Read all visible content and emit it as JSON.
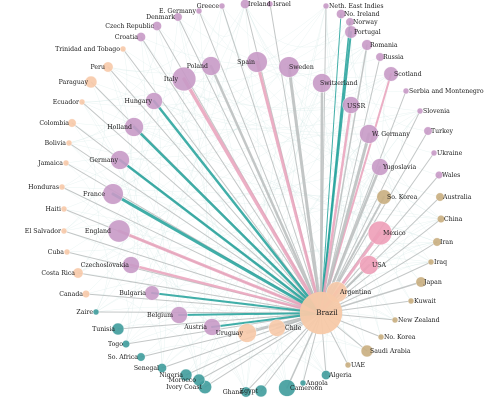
{
  "diagram": {
    "colors": {
      "europe": "#c89ac6",
      "americas": "#f7c9a8",
      "africa": "#3f9c9c",
      "asia": "#c9ae7f",
      "mexico": "#ee9fb8",
      "edge_teal": "#21a19a",
      "edge_pink": "#e9a2bb",
      "edge_gray": "#b9bdbd"
    },
    "hub": {
      "name": "Brazil",
      "region": "americas",
      "weight": 10
    },
    "countries": [
      {
        "name": "Ireland",
        "region": "europe",
        "weight": 1.2,
        "edge": "gray",
        "strength": 1
      },
      {
        "name": "Israel",
        "region": "europe",
        "weight": 0.5,
        "edge": "gray",
        "strength": 1
      },
      {
        "name": "Neth. East Indies",
        "region": "europe",
        "weight": 0.5,
        "edge": "gray",
        "strength": 1
      },
      {
        "name": "No. Ireland",
        "region": "europe",
        "weight": 1.2,
        "edge": "teal",
        "strength": 1
      },
      {
        "name": "Norway",
        "region": "europe",
        "weight": 1,
        "edge": "teal",
        "strength": 1.5
      },
      {
        "name": "Portugal",
        "region": "europe",
        "weight": 2.2,
        "edge": "teal",
        "strength": 2
      },
      {
        "name": "Romania",
        "region": "europe",
        "weight": 1.6,
        "edge": "gray",
        "strength": 1.5
      },
      {
        "name": "Russia",
        "region": "europe",
        "weight": 1,
        "edge": "gray",
        "strength": 1
      },
      {
        "name": "Scotland",
        "region": "europe",
        "weight": 3,
        "edge": "pink",
        "strength": 2
      },
      {
        "name": "Serbia and Montenegro",
        "region": "europe",
        "weight": 0.5,
        "edge": "gray",
        "strength": 1
      },
      {
        "name": "Slovenia",
        "region": "europe",
        "weight": 0.5,
        "edge": "gray",
        "strength": 1
      },
      {
        "name": "Turkey",
        "region": "europe",
        "weight": 1,
        "edge": "gray",
        "strength": 1
      },
      {
        "name": "W. Germany",
        "region": "europe",
        "weight": 5,
        "edge": "gray",
        "strength": 3
      },
      {
        "name": "Ukraine",
        "region": "europe",
        "weight": 0.5,
        "edge": "gray",
        "strength": 1
      },
      {
        "name": "Yugoslavia",
        "region": "europe",
        "weight": 4,
        "edge": "gray",
        "strength": 2.5
      },
      {
        "name": "Wales",
        "region": "europe",
        "weight": 0.8,
        "edge": "gray",
        "strength": 1
      },
      {
        "name": "So. Korea",
        "region": "asia",
        "weight": 3,
        "edge": "gray",
        "strength": 2
      },
      {
        "name": "Australia",
        "region": "asia",
        "weight": 1,
        "edge": "gray",
        "strength": 1
      },
      {
        "name": "China",
        "region": "asia",
        "weight": 0.8,
        "edge": "gray",
        "strength": 1
      },
      {
        "name": "Mexico",
        "region": "mexico",
        "weight": 8,
        "edge": "pink",
        "strength": 3
      },
      {
        "name": "Iran",
        "region": "asia",
        "weight": 1,
        "edge": "gray",
        "strength": 1
      },
      {
        "name": "USA",
        "region": "mexico",
        "weight": 5,
        "edge": "gray",
        "strength": 2
      },
      {
        "name": "Iraq",
        "region": "asia",
        "weight": 0.5,
        "edge": "gray",
        "strength": 1
      },
      {
        "name": "Japan",
        "region": "asia",
        "weight": 1.5,
        "edge": "gray",
        "strength": 1.5
      },
      {
        "name": "Argentina",
        "region": "americas",
        "weight": 6,
        "edge": "pink",
        "strength": 3
      },
      {
        "name": "Kuwait",
        "region": "asia",
        "weight": 0.5,
        "edge": "gray",
        "strength": 1
      },
      {
        "name": "New Zealand",
        "region": "asia",
        "weight": 0.5,
        "edge": "gray",
        "strength": 1
      },
      {
        "name": "No. Korea",
        "region": "asia",
        "weight": 0.5,
        "edge": "gray",
        "strength": 1
      },
      {
        "name": "Saudi Arabia",
        "region": "asia",
        "weight": 2,
        "edge": "gray",
        "strength": 1
      },
      {
        "name": "UAE",
        "region": "asia",
        "weight": 0.5,
        "edge": "gray",
        "strength": 1
      },
      {
        "name": "Algeria",
        "region": "africa",
        "weight": 1.2,
        "edge": "gray",
        "strength": 1
      },
      {
        "name": "Angola",
        "region": "africa",
        "weight": 0.5,
        "edge": "gray",
        "strength": 1
      },
      {
        "name": "Cameroon",
        "region": "africa",
        "weight": 4,
        "edge": "gray",
        "strength": 1.5
      },
      {
        "name": "Egypt",
        "region": "africa",
        "weight": 2,
        "edge": "gray",
        "strength": 1
      },
      {
        "name": "Ghana",
        "region": "africa",
        "weight": 1.5,
        "edge": "gray",
        "strength": 1
      },
      {
        "name": "Ivory Coast",
        "region": "africa",
        "weight": 2.5,
        "edge": "gray",
        "strength": 1
      },
      {
        "name": "Morocco",
        "region": "africa",
        "weight": 2,
        "edge": "gray",
        "strength": 1
      },
      {
        "name": "Nigeria",
        "region": "africa",
        "weight": 2,
        "edge": "gray",
        "strength": 1
      },
      {
        "name": "Senegal",
        "region": "africa",
        "weight": 1.2,
        "edge": "gray",
        "strength": 1
      },
      {
        "name": "So. Africa",
        "region": "africa",
        "weight": 1,
        "edge": "gray",
        "strength": 1
      },
      {
        "name": "Togo",
        "region": "africa",
        "weight": 0.8,
        "edge": "gray",
        "strength": 1
      },
      {
        "name": "Tunisia",
        "region": "africa",
        "weight": 2,
        "edge": "gray",
        "strength": 1
      },
      {
        "name": "Zaire",
        "region": "africa",
        "weight": 0.5,
        "edge": "gray",
        "strength": 1
      },
      {
        "name": "Canada",
        "region": "americas",
        "weight": 0.8,
        "edge": "gray",
        "strength": 1
      },
      {
        "name": "Costa Rica",
        "region": "americas",
        "weight": 1.5,
        "edge": "gray",
        "strength": 1
      },
      {
        "name": "Cuba",
        "region": "americas",
        "weight": 0.5,
        "edge": "gray",
        "strength": 1
      },
      {
        "name": "El Salvador",
        "region": "americas",
        "weight": 0.5,
        "edge": "gray",
        "strength": 1
      },
      {
        "name": "Haiti",
        "region": "americas",
        "weight": 0.5,
        "edge": "gray",
        "strength": 1
      },
      {
        "name": "Honduras",
        "region": "americas",
        "weight": 0.5,
        "edge": "gray",
        "strength": 1
      },
      {
        "name": "Jamaica",
        "region": "americas",
        "weight": 0.5,
        "edge": "gray",
        "strength": 1
      },
      {
        "name": "Bolivia",
        "region": "americas",
        "weight": 0.5,
        "edge": "gray",
        "strength": 1
      },
      {
        "name": "Colombia",
        "region": "americas",
        "weight": 1,
        "edge": "gray",
        "strength": 1
      },
      {
        "name": "Ecuador",
        "region": "americas",
        "weight": 0.5,
        "edge": "gray",
        "strength": 1
      },
      {
        "name": "Paraguay",
        "region": "americas",
        "weight": 2,
        "edge": "gray",
        "strength": 1
      },
      {
        "name": "Peru",
        "region": "americas",
        "weight": 1.5,
        "edge": "gray",
        "strength": 1
      },
      {
        "name": "Trinidad and Tobago",
        "region": "americas",
        "weight": 0.5,
        "edge": "gray",
        "strength": 1
      },
      {
        "name": "Croatia",
        "region": "europe",
        "weight": 1.2,
        "edge": "gray",
        "strength": 1
      },
      {
        "name": "Czech Republic",
        "region": "europe",
        "weight": 1.2,
        "edge": "gray",
        "strength": 1
      },
      {
        "name": "Denmark",
        "region": "europe",
        "weight": 1,
        "edge": "gray",
        "strength": 1
      },
      {
        "name": "E. Germany",
        "region": "europe",
        "weight": 0.5,
        "edge": "gray",
        "strength": 1
      },
      {
        "name": "Greece",
        "region": "europe",
        "weight": 0.5,
        "edge": "gray",
        "strength": 1
      },
      {
        "name": "Chile",
        "region": "americas",
        "weight": 4,
        "edge": "gray",
        "strength": 2
      },
      {
        "name": "Uruguay",
        "region": "americas",
        "weight": 5,
        "edge": "gray",
        "strength": 2
      },
      {
        "name": "Austria",
        "region": "europe",
        "weight": 4,
        "edge": "teal",
        "strength": 2
      },
      {
        "name": "Belgium",
        "region": "europe",
        "weight": 4,
        "edge": "teal",
        "strength": 2
      },
      {
        "name": "Bulgaria",
        "region": "europe",
        "weight": 3,
        "edge": "teal",
        "strength": 2
      },
      {
        "name": "Czechoslovakia",
        "region": "europe",
        "weight": 4,
        "edge": "pink",
        "strength": 2.5
      },
      {
        "name": "England",
        "region": "europe",
        "weight": 7,
        "edge": "pink",
        "strength": 3
      },
      {
        "name": "France",
        "region": "europe",
        "weight": 6,
        "edge": "teal",
        "strength": 3
      },
      {
        "name": "Germany",
        "region": "europe",
        "weight": 5,
        "edge": "teal",
        "strength": 2.5
      },
      {
        "name": "Holland",
        "region": "europe",
        "weight": 5,
        "edge": "teal",
        "strength": 2.5
      },
      {
        "name": "Hungary",
        "region": "europe",
        "weight": 4,
        "edge": "teal",
        "strength": 2.5
      },
      {
        "name": "Italy",
        "region": "europe",
        "weight": 8,
        "edge": "pink",
        "strength": 3.5
      },
      {
        "name": "Poland",
        "region": "europe",
        "weight": 5,
        "edge": "gray",
        "strength": 2.5
      },
      {
        "name": "Spain",
        "region": "europe",
        "weight": 6,
        "edge": "pink",
        "strength": 3
      },
      {
        "name": "Sweden",
        "region": "europe",
        "weight": 6,
        "edge": "gray",
        "strength": 3
      },
      {
        "name": "Switzerland",
        "region": "europe",
        "weight": 5,
        "edge": "gray",
        "strength": 2.5
      },
      {
        "name": "USSR",
        "region": "europe",
        "weight": 4,
        "edge": "pink",
        "strength": 2.5
      }
    ]
  }
}
